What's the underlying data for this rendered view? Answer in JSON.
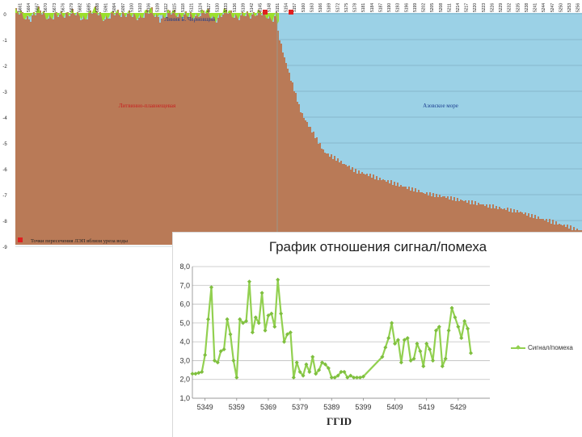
{
  "profile": {
    "labels": {
      "lake": "Линия Б. Черновщий",
      "land": "Литвинно-плавнещевая",
      "sea": "Азовское море",
      "legend": "Точки пересечения ЛЭП вблизи уреза воды"
    },
    "y_ticks": [
      "0",
      "-1",
      "-2",
      "-3",
      "-4",
      "-5",
      "-6",
      "-7",
      "-8",
      "-9"
    ],
    "x_ticks": [
      "5661",
      "5664",
      "5667",
      "5670",
      "5673",
      "5676",
      "5679",
      "5682",
      "5685",
      "5688",
      "5091",
      "5094",
      "5097",
      "5100",
      "5103",
      "5106",
      "5109",
      "5112",
      "5115",
      "5118",
      "5121",
      "5124",
      "5127",
      "5130",
      "5133",
      "5136",
      "5139",
      "5142",
      "5145",
      "5148",
      "5151",
      "5154",
      "5157",
      "5160",
      "5163",
      "5166",
      "5169",
      "5172",
      "5175",
      "5178",
      "5181",
      "5184",
      "5187",
      "5190",
      "5193",
      "5196",
      "5199",
      "5202",
      "5205",
      "5208",
      "5211",
      "5214",
      "5217",
      "5220",
      "5223",
      "5226",
      "5229",
      "5232",
      "5235",
      "5238",
      "5241",
      "5244",
      "5247",
      "5250",
      "5253",
      "5256"
    ],
    "colors": {
      "ground": "#b97a57",
      "sea": "#9bd1e6",
      "lake": "#9be02b",
      "marker": "#e02020"
    }
  },
  "chart_data": {
    "type": "line",
    "title": "График отношения сигнал/помеха",
    "xlabel": "ГГID",
    "ylabel": "",
    "xlim": [
      5345,
      5439
    ],
    "ylim": [
      1.0,
      8.0
    ],
    "x_ticks": [
      5349,
      5359,
      5369,
      5379,
      5389,
      5399,
      5409,
      5419,
      5429
    ],
    "y_ticks": [
      "1,0",
      "2,0",
      "3,0",
      "4,0",
      "5,0",
      "6,0",
      "7,0",
      "8,0"
    ],
    "grid": true,
    "legend": "right",
    "series": [
      {
        "name": "Сигнал/помеха",
        "color": "#92d050",
        "points": [
          [
            5345,
            2.3
          ],
          [
            5346,
            2.3
          ],
          [
            5347,
            2.35
          ],
          [
            5348,
            2.4
          ],
          [
            5349,
            3.3
          ],
          [
            5350,
            5.2
          ],
          [
            5351,
            6.9
          ],
          [
            5352,
            3.0
          ],
          [
            5353,
            2.9
          ],
          [
            5354,
            3.5
          ],
          [
            5355,
            3.6
          ],
          [
            5356,
            5.2
          ],
          [
            5357,
            4.4
          ],
          [
            5358,
            3.0
          ],
          [
            5359,
            2.1
          ],
          [
            5360,
            5.2
          ],
          [
            5361,
            5.0
          ],
          [
            5362,
            5.1
          ],
          [
            5363,
            7.2
          ],
          [
            5364,
            4.5
          ],
          [
            5365,
            5.3
          ],
          [
            5366,
            5.0
          ],
          [
            5367,
            6.6
          ],
          [
            5368,
            4.6
          ],
          [
            5369,
            5.4
          ],
          [
            5370,
            5.5
          ],
          [
            5371,
            4.8
          ],
          [
            5372,
            7.3
          ],
          [
            5373,
            5.5
          ],
          [
            5374,
            4.0
          ],
          [
            5375,
            4.4
          ],
          [
            5376,
            4.5
          ],
          [
            5377,
            2.1
          ],
          [
            5378,
            2.9
          ],
          [
            5379,
            2.4
          ],
          [
            5380,
            2.2
          ],
          [
            5381,
            2.8
          ],
          [
            5382,
            2.4
          ],
          [
            5383,
            3.2
          ],
          [
            5384,
            2.3
          ],
          [
            5385,
            2.5
          ],
          [
            5386,
            2.9
          ],
          [
            5387,
            2.8
          ],
          [
            5388,
            2.6
          ],
          [
            5389,
            2.1
          ],
          [
            5390,
            2.1
          ],
          [
            5391,
            2.2
          ],
          [
            5392,
            2.4
          ],
          [
            5393,
            2.4
          ],
          [
            5394,
            2.1
          ],
          [
            5395,
            2.2
          ],
          [
            5396,
            2.1
          ],
          [
            5397,
            2.1
          ],
          [
            5398,
            2.1
          ],
          [
            5399,
            2.15
          ],
          [
            5405,
            3.2
          ],
          [
            5406,
            3.7
          ],
          [
            5407,
            4.2
          ],
          [
            5408,
            5.0
          ],
          [
            5409,
            3.9
          ],
          [
            5410,
            4.1
          ],
          [
            5411,
            2.9
          ],
          [
            5412,
            4.1
          ],
          [
            5413,
            4.2
          ],
          [
            5414,
            3.0
          ],
          [
            5415,
            3.1
          ],
          [
            5416,
            3.9
          ],
          [
            5417,
            3.5
          ],
          [
            5418,
            2.7
          ],
          [
            5419,
            3.9
          ],
          [
            5420,
            3.6
          ],
          [
            5421,
            3.0
          ],
          [
            5422,
            4.6
          ],
          [
            5423,
            4.8
          ],
          [
            5424,
            2.7
          ],
          [
            5425,
            3.1
          ],
          [
            5426,
            4.6
          ],
          [
            5427,
            5.8
          ],
          [
            5428,
            5.3
          ],
          [
            5429,
            4.8
          ],
          [
            5430,
            4.2
          ],
          [
            5431,
            5.1
          ],
          [
            5432,
            4.7
          ],
          [
            5433,
            3.4
          ]
        ]
      }
    ]
  }
}
